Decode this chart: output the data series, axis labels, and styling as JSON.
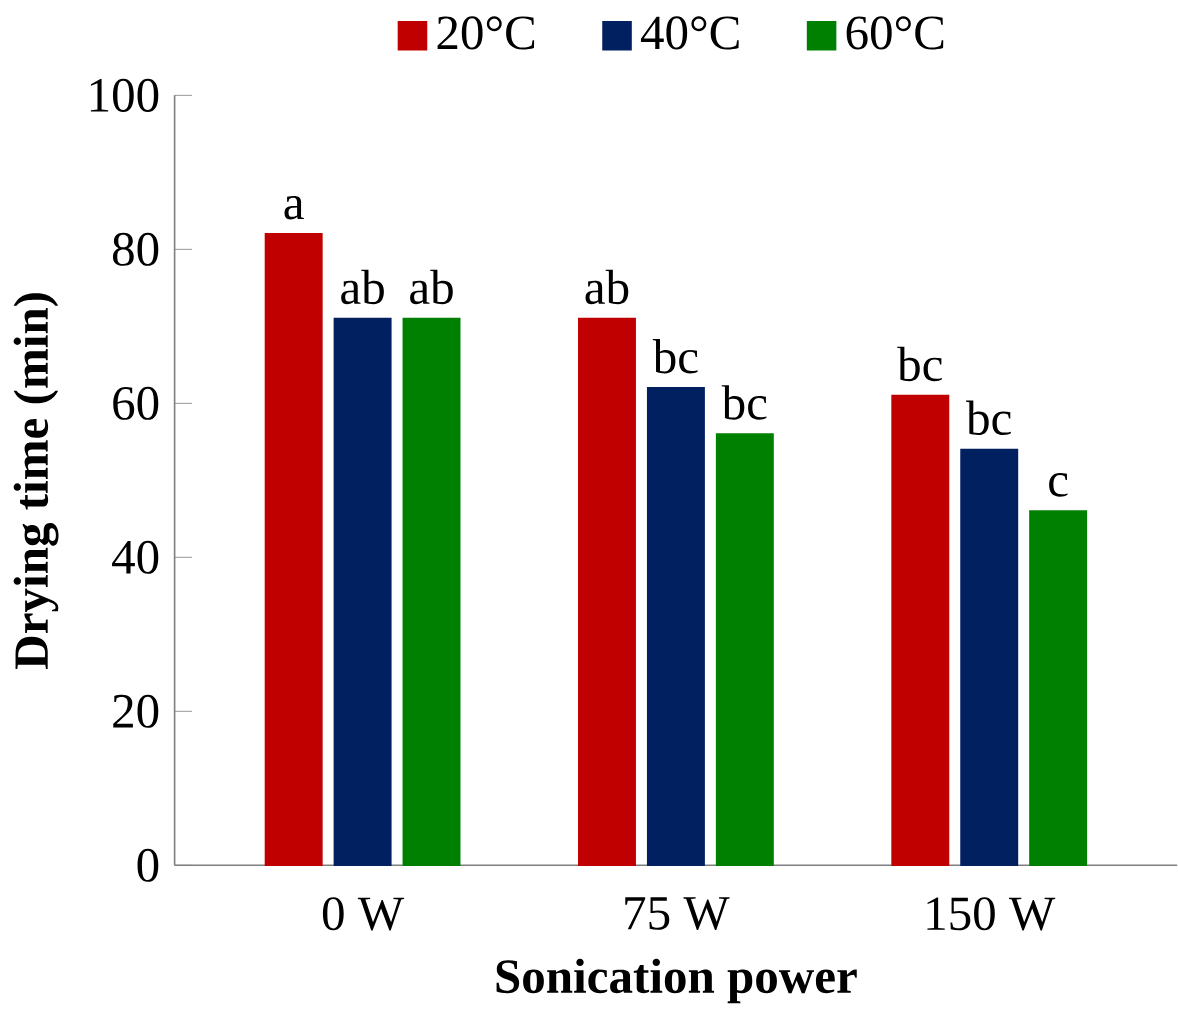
{
  "chart_data": {
    "type": "bar",
    "xlabel": "Sonication power",
    "ylabel": "Drying time (min)",
    "categories": [
      "0 W",
      "75 W",
      "150 W"
    ],
    "series": [
      {
        "name": "20°C",
        "color": "#c00000",
        "values": [
          82,
          71,
          61
        ],
        "value_labels": [
          "a",
          "ab",
          "bc"
        ]
      },
      {
        "name": "40°C",
        "color": "#002060",
        "values": [
          71,
          62,
          54
        ],
        "value_labels": [
          "ab",
          "bc",
          "bc"
        ]
      },
      {
        "name": "60°C",
        "color": "#008000",
        "values": [
          71,
          56,
          46
        ],
        "value_labels": [
          "ab",
          "bc",
          "c"
        ]
      }
    ],
    "ylim": [
      0,
      100
    ],
    "yticks": [
      0,
      20,
      40,
      60,
      80,
      100
    ],
    "grid": false,
    "legend": "top"
  }
}
